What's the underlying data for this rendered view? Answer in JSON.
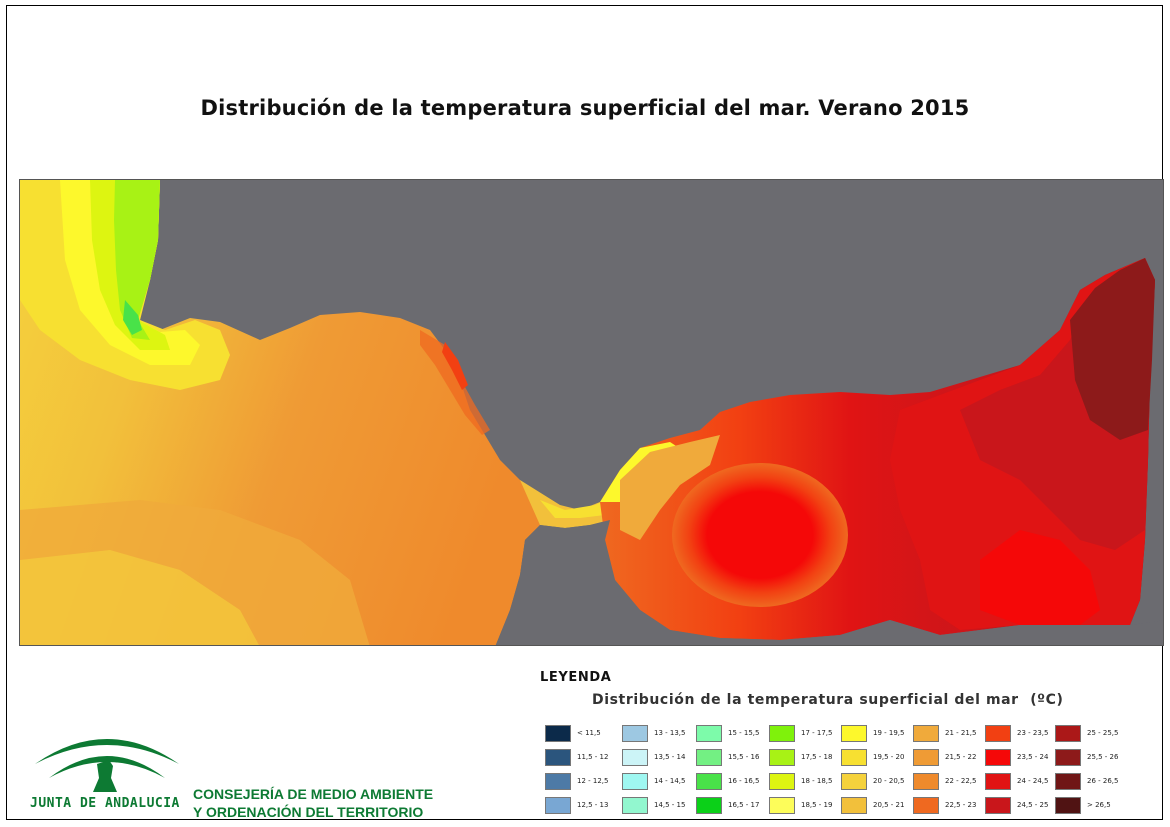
{
  "title": "Distribución de la temperatura superficial del mar. Verano 2015",
  "colors": {
    "land": "#6b6b70",
    "brand_green": "#0d7a33"
  },
  "map_features": {
    "land_regions": [
      "northern-coast",
      "northern-cape-west",
      "southern-coast"
    ],
    "sea_zones": [
      {
        "name": "atlantic-cool-upwelling",
        "range": "15,5 - 18,5"
      },
      {
        "name": "atlantic-warm",
        "range": "19 - 21,5"
      },
      {
        "name": "strait",
        "range": "19 - 20,5"
      },
      {
        "name": "alboran-west-gyre",
        "range": "23 - 24"
      },
      {
        "name": "alboran-east",
        "range": "24 - 25,5"
      }
    ]
  },
  "legend": {
    "heading": "LEYENDA",
    "subtitle": "Distribución de la temperatura superficial del mar",
    "unit": "(ºC)",
    "items": [
      {
        "label": "< 11,5",
        "color": "#0c2a4a"
      },
      {
        "label": "11,5 - 12",
        "color": "#2b557d"
      },
      {
        "label": "12 - 12,5",
        "color": "#4d7aa6"
      },
      {
        "label": "12,5 - 13",
        "color": "#79a7d3"
      },
      {
        "label": "13 - 13,5",
        "color": "#9dc8e2"
      },
      {
        "label": "13,5 - 14",
        "color": "#ccf4f7"
      },
      {
        "label": "14 - 14,5",
        "color": "#9ff7f1"
      },
      {
        "label": "14,5 - 15",
        "color": "#92f7cf"
      },
      {
        "label": "15 - 15,5",
        "color": "#7dfbaa"
      },
      {
        "label": "15,5 - 16",
        "color": "#73f083"
      },
      {
        "label": "16 - 16,5",
        "color": "#49e249"
      },
      {
        "label": "16,5 - 17",
        "color": "#0bd018"
      },
      {
        "label": "17 - 17,5",
        "color": "#7ff20b"
      },
      {
        "label": "17,5 - 18",
        "color": "#a8f215"
      },
      {
        "label": "18 - 18,5",
        "color": "#ddf511"
      },
      {
        "label": "18,5 - 19",
        "color": "#fdfd5a"
      },
      {
        "label": "19 - 19,5",
        "color": "#fdf82c"
      },
      {
        "label": "19,5 - 20",
        "color": "#f7e031"
      },
      {
        "label": "20 - 20,5",
        "color": "#f5d23c"
      },
      {
        "label": "20,5 - 21",
        "color": "#f2c03b"
      },
      {
        "label": "21 - 21,5",
        "color": "#f0aa3b"
      },
      {
        "label": "21,5 - 22",
        "color": "#ef9b35"
      },
      {
        "label": "22 - 22,5",
        "color": "#ef8a2c"
      },
      {
        "label": "22,5 - 23",
        "color": "#ef6920"
      },
      {
        "label": "23 - 23,5",
        "color": "#f24012"
      },
      {
        "label": "23,5 - 24",
        "color": "#f50808"
      },
      {
        "label": "24 - 24,5",
        "color": "#e01414"
      },
      {
        "label": "24,5 - 25",
        "color": "#c9161b"
      },
      {
        "label": "25 - 25,5",
        "color": "#ab1818"
      },
      {
        "label": "25,5 - 26",
        "color": "#8d1a1a"
      },
      {
        "label": "26 - 26,5",
        "color": "#701616"
      },
      {
        "label": "> 26,5",
        "color": "#501313"
      }
    ]
  },
  "logo": {
    "text": "JUNTA DE ANDALUCIA"
  },
  "department": {
    "line1": "CONSEJERÍA DE MEDIO AMBIENTE",
    "line2": "Y ORDENACIÓN DEL TERRITORIO"
  }
}
